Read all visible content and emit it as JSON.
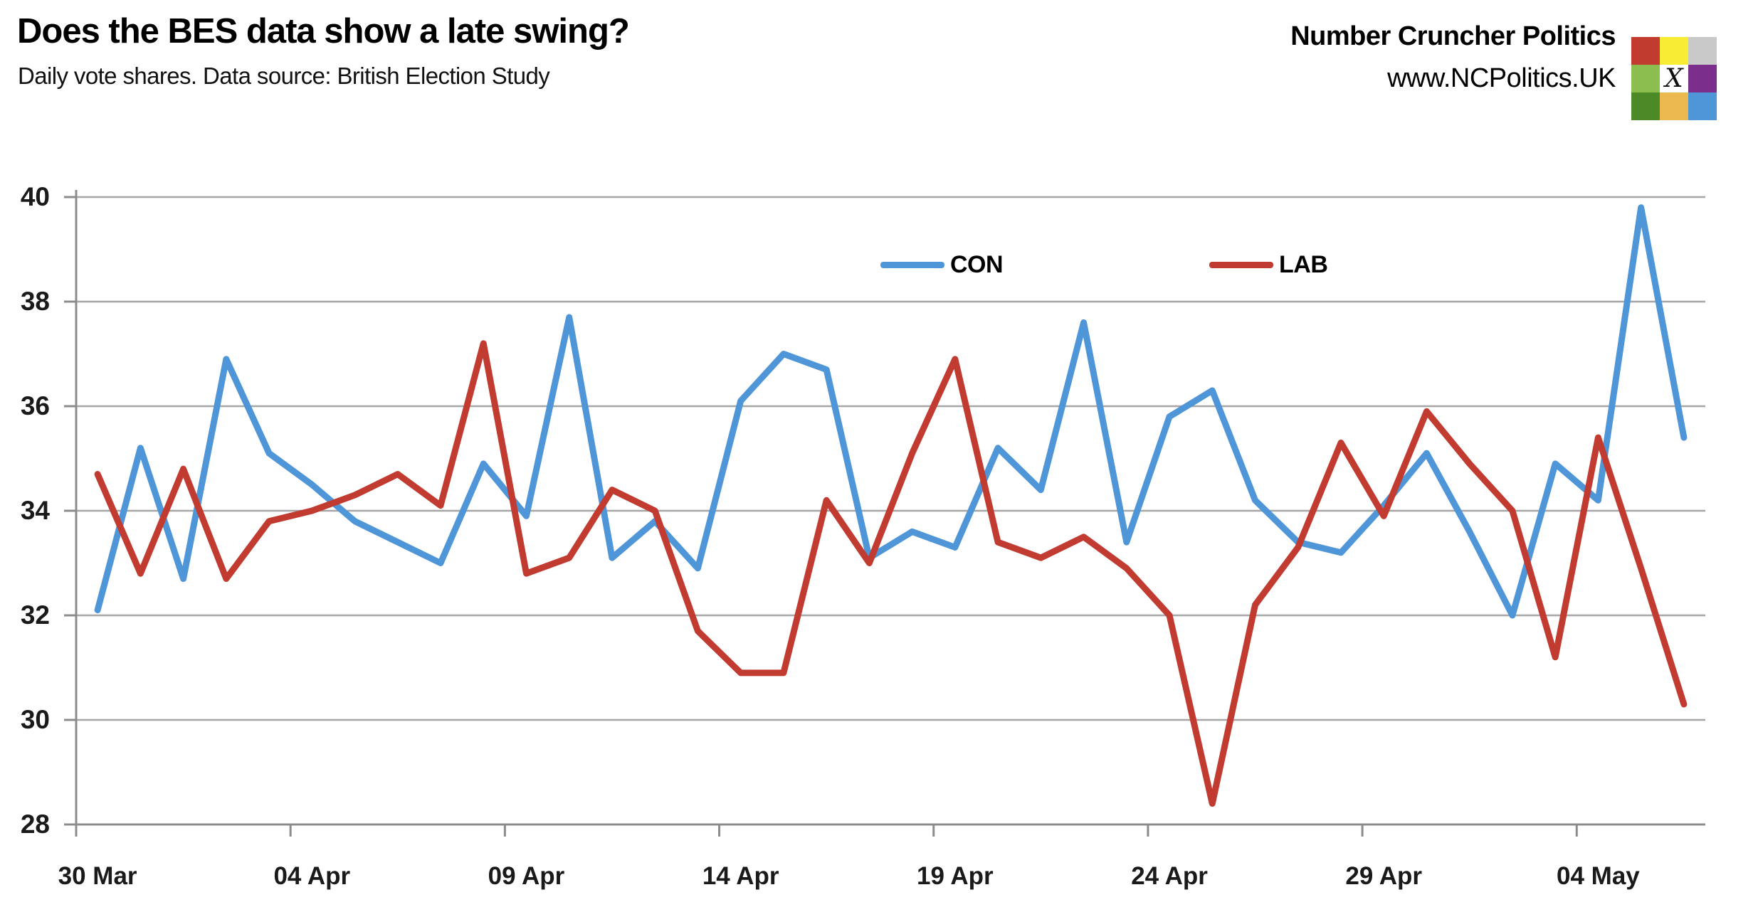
{
  "header": {
    "title": "Does the BES data show a late swing?",
    "subtitle": "Daily vote shares. Data source: British Election Study",
    "brand": {
      "name": "Number Cruncher Politics",
      "url": "www.NCPolitics.UK",
      "logo_colors": [
        "#C13B2F",
        "#F8EC34",
        "#C9C9C9",
        "#8CBE4F",
        "#FFFFFF",
        "#7C2E8C",
        "#4C8A28",
        "#EBB94F",
        "#4F96D9"
      ],
      "logo_x_glyph": "X"
    }
  },
  "legend": [
    {
      "label": "CON",
      "color": "#4F96D9"
    },
    {
      "label": "LAB",
      "color": "#C23B30"
    }
  ],
  "chart_data": {
    "type": "line",
    "title": "Does the BES data show a late swing?",
    "x": [
      "30 Mar",
      "31 Mar",
      "01 Apr",
      "02 Apr",
      "03 Apr",
      "04 Apr",
      "05 Apr",
      "06 Apr",
      "07 Apr",
      "08 Apr",
      "09 Apr",
      "10 Apr",
      "11 Apr",
      "12 Apr",
      "13 Apr",
      "14 Apr",
      "15 Apr",
      "16 Apr",
      "17 Apr",
      "18 Apr",
      "19 Apr",
      "20 Apr",
      "21 Apr",
      "22 Apr",
      "23 Apr",
      "24 Apr",
      "25 Apr",
      "26 Apr",
      "27 Apr",
      "28 Apr",
      "29 Apr",
      "30 Apr",
      "01 May",
      "02 May",
      "03 May",
      "04 May",
      "05 May",
      "06 May"
    ],
    "series": [
      {
        "name": "CON",
        "color": "#4F96D9",
        "values": [
          32.1,
          35.2,
          32.7,
          36.9,
          35.1,
          34.5,
          33.8,
          33.4,
          33.0,
          34.9,
          33.9,
          37.7,
          33.1,
          33.8,
          32.9,
          36.1,
          37.0,
          36.7,
          33.1,
          33.6,
          33.3,
          35.2,
          34.4,
          37.6,
          33.4,
          35.8,
          36.3,
          34.2,
          33.4,
          33.2,
          34.1,
          35.1,
          33.6,
          32.0,
          34.9,
          34.2,
          39.8,
          35.4
        ]
      },
      {
        "name": "LAB",
        "color": "#C23B30",
        "values": [
          34.7,
          32.8,
          34.8,
          32.7,
          33.8,
          34.0,
          34.3,
          34.7,
          34.1,
          37.2,
          32.8,
          33.1,
          34.4,
          34.0,
          31.7,
          30.9,
          30.9,
          34.2,
          33.0,
          35.1,
          36.9,
          33.4,
          33.1,
          33.5,
          32.9,
          32.0,
          28.4,
          32.2,
          33.3,
          35.3,
          33.9,
          35.9,
          34.9,
          34.0,
          31.2,
          35.4,
          32.9,
          30.3
        ]
      }
    ],
    "ylim": [
      28,
      40
    ],
    "yticks": [
      28,
      30,
      32,
      34,
      36,
      38,
      40
    ],
    "xtick_labels": [
      "30 Mar",
      "04 Apr",
      "09 Apr",
      "14 Apr",
      "19 Apr",
      "24 Apr",
      "29 Apr",
      "04 May"
    ],
    "xtick_every": 5,
    "xlabel": "",
    "ylabel": "",
    "grid": true,
    "legend_position": "top-center-inside"
  }
}
